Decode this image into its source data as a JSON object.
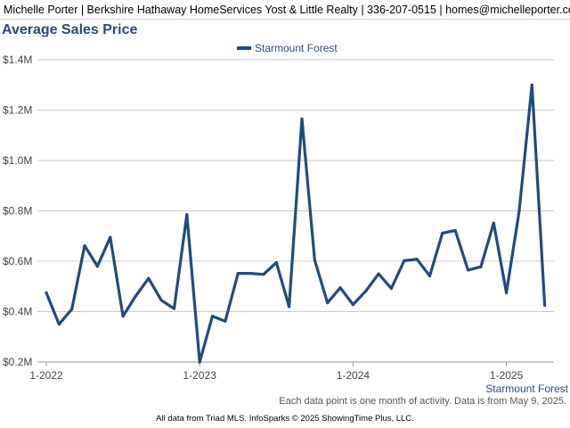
{
  "header": {
    "agent_info": "Michelle Porter | Berkshire Hathaway HomeServices Yost & Little Realty | 336-207-0515 | homes@michelleporter.com"
  },
  "colors": {
    "series": "#1f4b82",
    "title": "#2b4a7a",
    "grid": "#c8c8c8"
  },
  "chart_data": {
    "type": "line",
    "title": "Average Sales Price",
    "ylim": [
      200000,
      1400000
    ],
    "y_ticks": [
      200000,
      400000,
      600000,
      800000,
      1000000,
      1200000,
      1400000
    ],
    "y_tick_labels": [
      "$0.2M",
      "$0.4M",
      "$0.6M",
      "$0.8M",
      "$1.0M",
      "$1.2M",
      "$1.4M"
    ],
    "x_tick_labels": [
      "1-2022",
      "1-2023",
      "1-2024",
      "1-2025"
    ],
    "x_tick_index": [
      0,
      12,
      24,
      36
    ],
    "x_corner_label": "Starmount Forest",
    "legend_position": "top-center",
    "grid": true,
    "series": [
      {
        "name": "Starmount Forest",
        "x": [
          "2022-01",
          "2022-02",
          "2022-03",
          "2022-04",
          "2022-05",
          "2022-06",
          "2022-07",
          "2022-08",
          "2022-09",
          "2022-10",
          "2022-11",
          "2022-12",
          "2023-01",
          "2023-02",
          "2023-03",
          "2023-04",
          "2023-05",
          "2023-06",
          "2023-07",
          "2023-08",
          "2023-09",
          "2023-10",
          "2023-11",
          "2023-12",
          "2024-01",
          "2024-02",
          "2024-03",
          "2024-04",
          "2024-05",
          "2024-06",
          "2024-07",
          "2024-08",
          "2024-09",
          "2024-10",
          "2024-11",
          "2024-12",
          "2025-01",
          "2025-02",
          "2025-03",
          "2025-04"
        ],
        "values": [
          475000,
          350000,
          410000,
          662000,
          580000,
          695000,
          382000,
          462000,
          532000,
          445000,
          412000,
          785000,
          200000,
          382000,
          362000,
          552000,
          552000,
          548000,
          595000,
          420000,
          1165000,
          605000,
          435000,
          495000,
          428000,
          482000,
          550000,
          492000,
          602000,
          608000,
          542000,
          712000,
          722000,
          565000,
          578000,
          752000,
          475000,
          798000,
          1300000,
          425000
        ]
      }
    ]
  },
  "notes": {
    "data_note": "Each data point is one month of activity. Data is from May 9, 2025.",
    "footer": "All data from Triad MLS. InfoSparks © 2025 ShowingTime Plus, LLC."
  }
}
